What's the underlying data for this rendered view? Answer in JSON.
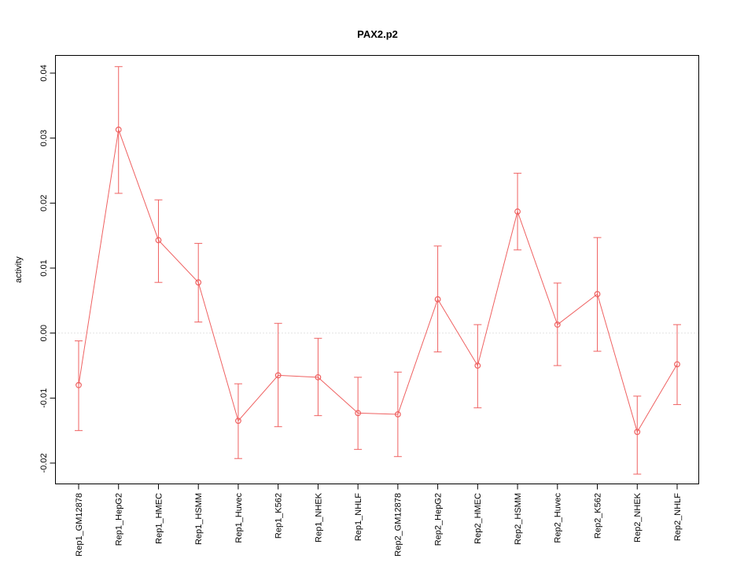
{
  "chart_data": {
    "type": "line",
    "title": "PAX2.p2",
    "xlabel": "",
    "ylabel": "activity",
    "legend": "none",
    "grid": "dotted-line-at-zero-only",
    "series_color": "#ef6161",
    "zero_line_color": "#c8c8c8",
    "point_style": "open-circle",
    "error_bars": true,
    "ylim": [
      -0.0235,
      0.0435
    ],
    "yticks": [
      -0.02,
      -0.01,
      0.0,
      0.01,
      0.02,
      0.03,
      0.04
    ],
    "categories": [
      "Rep1_GM12878",
      "Rep1_HepG2",
      "Rep1_HMEC",
      "Rep1_HSMM",
      "Rep1_Huvec",
      "Rep1_K562",
      "Rep1_NHEK",
      "Rep1_NHLF",
      "Rep2_GM12878",
      "Rep2_HepG2",
      "Rep2_HMEC",
      "Rep2_HSMM",
      "Rep2_Huvec",
      "Rep2_K562",
      "Rep2_NHEK",
      "Rep2_NHLF"
    ],
    "values": [
      -0.008,
      0.0313,
      0.0143,
      0.0078,
      -0.0135,
      -0.0065,
      -0.0068,
      -0.0123,
      -0.0125,
      0.0052,
      -0.005,
      0.0187,
      0.0013,
      0.006,
      -0.0152,
      -0.0048
    ],
    "ci_low": [
      -0.015,
      0.0215,
      0.0078,
      0.0017,
      -0.0193,
      -0.0144,
      -0.0127,
      -0.0179,
      -0.019,
      -0.0029,
      -0.0115,
      0.0128,
      -0.005,
      -0.0028,
      -0.0217,
      -0.011
    ],
    "ci_high": [
      -0.0012,
      0.041,
      0.0205,
      0.0138,
      -0.0078,
      0.0015,
      -0.0008,
      -0.0068,
      -0.006,
      0.0134,
      0.0013,
      0.0246,
      0.0077,
      0.0147,
      -0.0097,
      0.0013
    ]
  }
}
